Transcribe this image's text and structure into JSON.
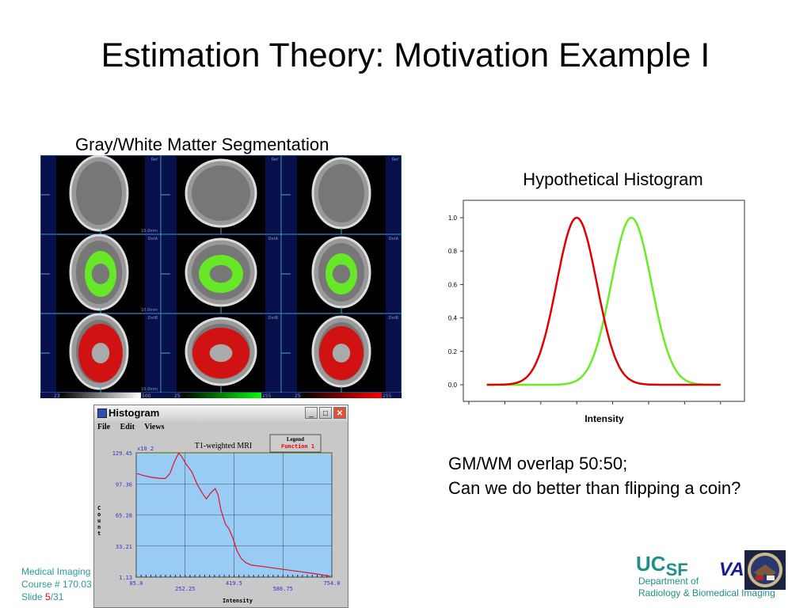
{
  "slide": {
    "title": "Estimation Theory: Motivation Example I",
    "mri_caption": "Gray/White Matter Segmentation",
    "mri_labels": {
      "top_right": "Ref",
      "middle_right": "DxtA",
      "bottom_right": "DxtB",
      "scale": "10.0mm",
      "cbar1_min": "23",
      "cbar1_max": "500",
      "cbar2_min": "25",
      "cbar2_max": "255",
      "cbar3_min": "25",
      "cbar3_max": "255"
    },
    "histogram_title": "Hypothetical Histogram",
    "question_line1": "GM/WM overlap 50:50;",
    "question_line2": "Can we do better than flipping a coin?"
  },
  "histogram_window": {
    "title": "Histogram",
    "menu": [
      "File",
      "Edit",
      "Views"
    ],
    "buttons": {
      "minimize": "_",
      "maximize": "□",
      "close": "✕"
    }
  },
  "footer": {
    "line1": "Medical Imaging",
    "line2": "Course # 170.03",
    "slide_label": "Slide ",
    "slide_current": "5",
    "slide_total": "/31",
    "ucsf_uc": "UC",
    "ucsf_sf": "SF",
    "va": "VA",
    "dept_line1": "Department of",
    "dept_line2": "Radiology & Biomedical Imaging",
    "seal_icon": "va-seal-icon"
  },
  "colors": {
    "gm": "#e00000",
    "wm": "#66ee22",
    "footer_teal": "#2a9a9a",
    "plot_bg": "#99ccf5"
  },
  "chart_data": [
    {
      "type": "line",
      "title": "Hypothetical Histogram",
      "xlabel": "Intensity",
      "ylabel": "",
      "ylim": [
        -0.1,
        1.1
      ],
      "yticks": [
        "0.0",
        "0.2",
        "0.4",
        "0.6",
        "0.8",
        "1.0"
      ],
      "xticks_count": 8,
      "x_range": [
        0.5,
        7.0
      ],
      "grid": false,
      "series": [
        {
          "color": "#e00000",
          "shape": "gaussian",
          "mean": 3.0,
          "sd": 0.56,
          "peak": 1.0
        },
        {
          "color": "#66ee22",
          "shape": "gaussian",
          "mean": 4.52,
          "sd": 0.56,
          "peak": 1.0
        }
      ]
    },
    {
      "type": "line",
      "title": "T1-weighted MRI",
      "xlabel": "Intensity",
      "ylabel": "Count",
      "y_multiplier": "x10 2",
      "xlim": [
        85.0,
        754.0
      ],
      "ylim": [
        1.13,
        129.45
      ],
      "xticks": [
        "85.0",
        "252.25",
        "419.5",
        "586.75",
        "754.0"
      ],
      "yticks": [
        "1.13",
        "33.21",
        "65.28",
        "97.36",
        "129.45"
      ],
      "legend": {
        "title": "Legend",
        "entries": [
          "Function 1"
        ]
      },
      "grid": true,
      "series": [
        {
          "name": "Function 1",
          "color": "#e0102a",
          "x": [
            88,
            110,
            140,
            170,
            185,
            200,
            215,
            230,
            240,
            255,
            275,
            295,
            315,
            325,
            340,
            355,
            365,
            375,
            390,
            402,
            415,
            430,
            445,
            461,
            480,
            520,
            580,
            640,
            700,
            748
          ],
          "y": [
            108,
            106,
            104,
            103,
            103,
            108,
            120,
            129,
            126,
            118,
            110,
            96,
            86,
            82,
            88,
            92.5,
            86,
            70,
            56,
            51,
            42,
            28,
            20,
            15.8,
            13.5,
            12,
            9.5,
            7,
            4.5,
            2
          ]
        }
      ]
    }
  ]
}
